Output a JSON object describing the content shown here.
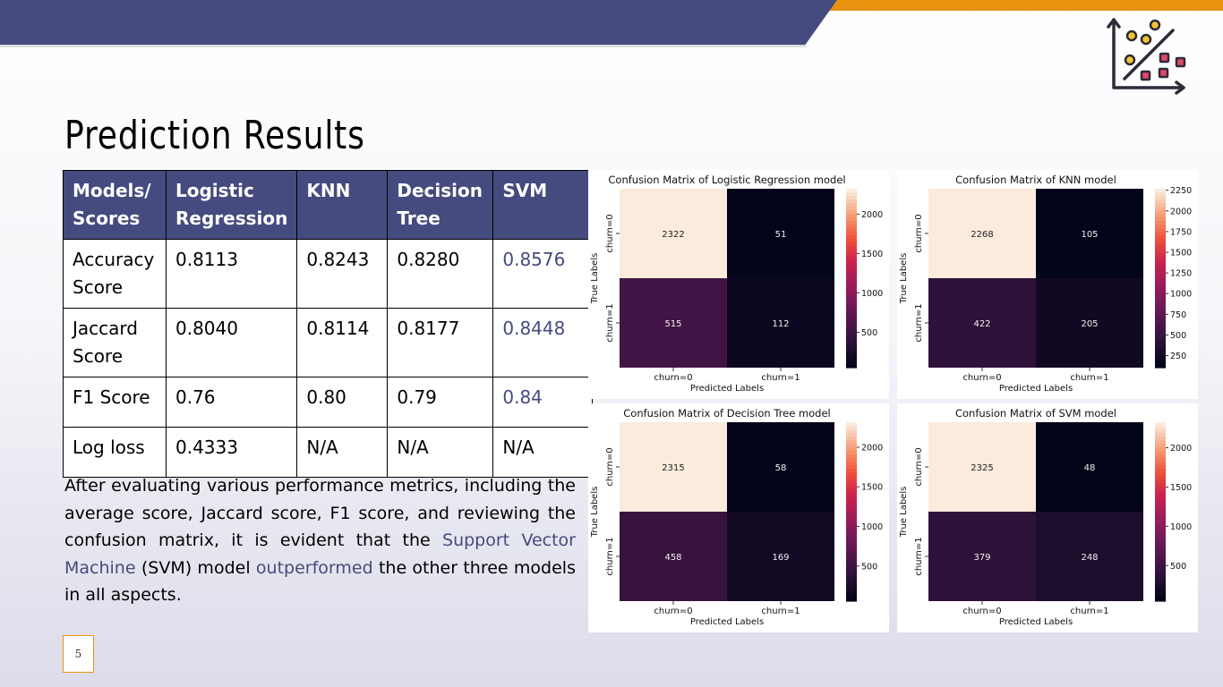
{
  "header": {
    "title": "Prediction Results",
    "colors": {
      "navy": "#454b7e",
      "orange": "#e8920f",
      "accent": "#454b7e"
    },
    "logo_icon": "scatter-plot-icon"
  },
  "table": {
    "headers": [
      "Models/ Scores",
      "Logistic Regression",
      "KNN",
      "Decision Tree",
      "SVM"
    ],
    "rows": [
      {
        "label": "Accuracy Score",
        "values": [
          "0.8113",
          "0.8243",
          "0.8280",
          "0.8576"
        ]
      },
      {
        "label": "Jaccard Score",
        "values": [
          "0.8040",
          "0.8114",
          "0.8177",
          "0.8448"
        ]
      },
      {
        "label": "F1 Score",
        "values": [
          "0.76",
          "0.80",
          "0.79",
          "0.84"
        ]
      },
      {
        "label": "Log loss",
        "values": [
          "0.4333",
          "N/A",
          "N/A",
          "N/A"
        ]
      }
    ]
  },
  "description": {
    "part1": "After evaluating various performance metrics, including the average score, Jaccard score, F1 score, and reviewing the confusion matrix, it is evident that the ",
    "highlight1": "Support Vector Machine",
    "part2": " (SVM) model ",
    "highlight2": "outperformed",
    "part3": " the other three models in all aspects."
  },
  "page_number": "5",
  "chart_data": [
    {
      "type": "heatmap",
      "title": "Confusion Matrix of Logistic Regression model",
      "xlabel": "Predicted Labels",
      "ylabel": "True Labels",
      "x_categories": [
        "churn=0",
        "churn=1"
      ],
      "y_categories": [
        "churn=0",
        "churn=1"
      ],
      "values": [
        [
          2322,
          51
        ],
        [
          515,
          112
        ]
      ],
      "colorbar_ticks": [
        500,
        1000,
        1500,
        2000
      ]
    },
    {
      "type": "heatmap",
      "title": "Confusion Matrix of KNN model",
      "xlabel": "Predicted Labels",
      "ylabel": "True Labels",
      "x_categories": [
        "churn=0",
        "churn=1"
      ],
      "y_categories": [
        "churn=0",
        "churn=1"
      ],
      "values": [
        [
          2268,
          105
        ],
        [
          422,
          205
        ]
      ],
      "colorbar_ticks": [
        250,
        500,
        750,
        1000,
        1250,
        1500,
        1750,
        2000,
        2250
      ]
    },
    {
      "type": "heatmap",
      "title": "Confusion Matrix of Decision Tree model",
      "xlabel": "Predicted Labels",
      "ylabel": "True Labels",
      "x_categories": [
        "churn=0",
        "churn=1"
      ],
      "y_categories": [
        "churn=0",
        "churn=1"
      ],
      "values": [
        [
          2315,
          58
        ],
        [
          458,
          169
        ]
      ],
      "colorbar_ticks": [
        500,
        1000,
        1500,
        2000
      ]
    },
    {
      "type": "heatmap",
      "title": "Confusion Matrix of SVM model",
      "xlabel": "Predicted Labels",
      "ylabel": "True Labels",
      "x_categories": [
        "churn=0",
        "churn=1"
      ],
      "y_categories": [
        "churn=0",
        "churn=1"
      ],
      "values": [
        [
          2325,
          48
        ],
        [
          379,
          248
        ]
      ],
      "colorbar_ticks": [
        500,
        1000,
        1500,
        2000
      ]
    }
  ]
}
